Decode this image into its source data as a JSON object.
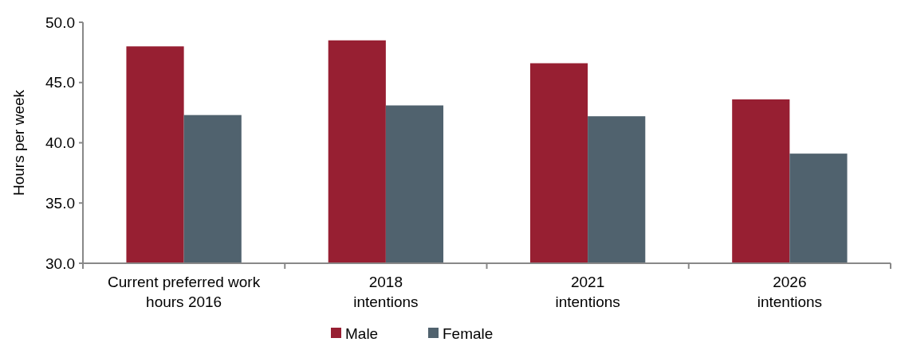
{
  "chart_data": {
    "type": "bar",
    "ylabel": "Hours per week",
    "categories": [
      "Current preferred work hours 2016",
      "2018 intentions",
      "2021 intentions",
      "2026 intentions"
    ],
    "series": [
      {
        "name": "Male",
        "color": "#971f32",
        "values": [
          48.0,
          48.5,
          46.6,
          43.6
        ]
      },
      {
        "name": "Female",
        "color": "#50626e",
        "values": [
          42.3,
          43.1,
          42.2,
          39.1
        ]
      }
    ],
    "ylim": [
      30,
      50
    ],
    "yticks": [
      {
        "value": 30,
        "label": "30.0"
      },
      {
        "value": 35,
        "label": "35.0"
      },
      {
        "value": 40,
        "label": "40.0"
      },
      {
        "value": 45,
        "label": "45.0"
      },
      {
        "value": 50,
        "label": "50.0"
      }
    ],
    "grid": false,
    "legend": "bottom"
  }
}
